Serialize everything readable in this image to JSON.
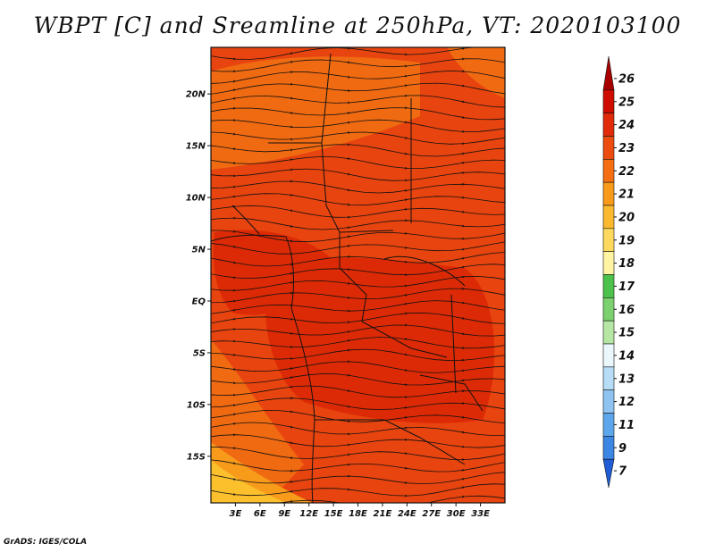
{
  "title": "WBPT [C] and Sreamline at 250hPa, VT: 2020103100",
  "footer": "GrADS: IGES/COLA",
  "map": {
    "lon_range": [
      0,
      36
    ],
    "lat_range": [
      -19.5,
      24.5
    ],
    "lat_ticks": [
      {
        "value": 20,
        "label": "20N"
      },
      {
        "value": 15,
        "label": "15N"
      },
      {
        "value": 10,
        "label": "10N"
      },
      {
        "value": 5,
        "label": "5N"
      },
      {
        "value": 0,
        "label": "EQ"
      },
      {
        "value": -5,
        "label": "5S"
      },
      {
        "value": -10,
        "label": "10S"
      },
      {
        "value": -15,
        "label": "15S"
      }
    ],
    "lon_ticks": [
      {
        "value": 3,
        "label": "3E"
      },
      {
        "value": 6,
        "label": "6E"
      },
      {
        "value": 9,
        "label": "9E"
      },
      {
        "value": 12,
        "label": "12E"
      },
      {
        "value": 15,
        "label": "15E"
      },
      {
        "value": 18,
        "label": "18E"
      },
      {
        "value": 21,
        "label": "21E"
      },
      {
        "value": 24,
        "label": "24E"
      },
      {
        "value": 27,
        "label": "27E"
      },
      {
        "value": 30,
        "label": "30E"
      },
      {
        "value": 33,
        "label": "33E"
      }
    ],
    "shading_colors": {
      "base": "#e8440f",
      "warm": "#dd2a06",
      "cool": "#f06a12",
      "cooler": "#f89a1a",
      "coolest": "#fcc02c"
    }
  },
  "colorbar": {
    "labels": [
      "26",
      "25",
      "24",
      "23",
      "22",
      "21",
      "20",
      "19",
      "18",
      "17",
      "16",
      "15",
      "14",
      "13",
      "12",
      "11",
      "9",
      "7"
    ],
    "colors": [
      "#a80000",
      "#cf0c00",
      "#e02a0a",
      "#ec4c10",
      "#f56f12",
      "#f99a1a",
      "#fbba2e",
      "#fdda5e",
      "#fff4a2",
      "#4cc24a",
      "#7ad16e",
      "#b6e6a4",
      "#eaf8fc",
      "#b6dcf6",
      "#8fc4f2",
      "#5ea6ec",
      "#3c86e4",
      "#1f5cd6"
    ]
  }
}
